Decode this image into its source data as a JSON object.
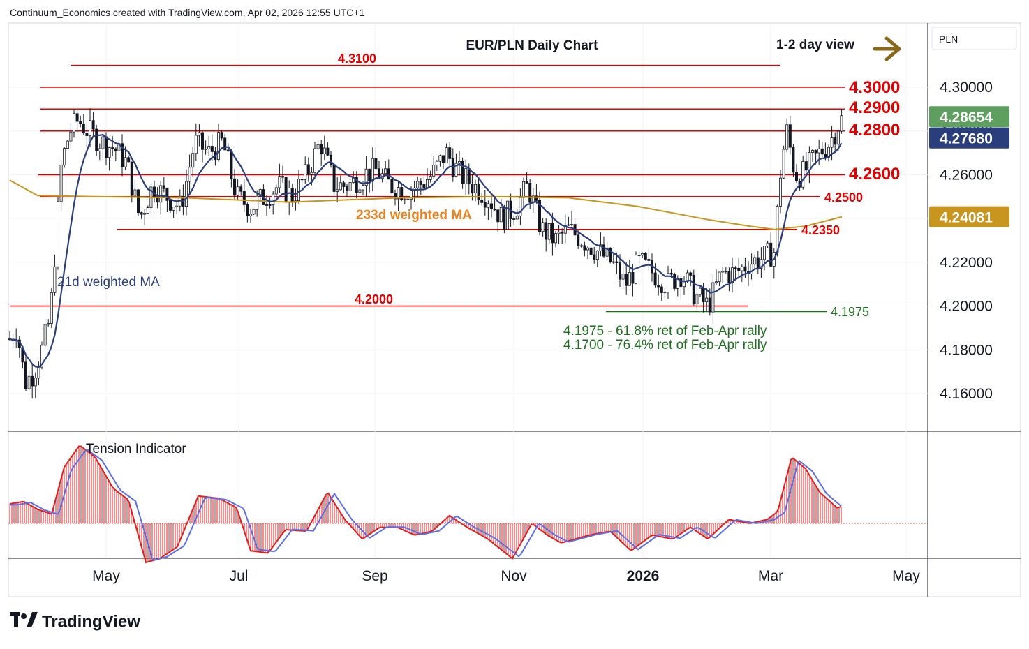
{
  "header": {
    "attribution": "Continuum_Economics created with TradingView.com, Apr 02, 2026 12:55 UTC+1"
  },
  "brand": {
    "name": "TradingView"
  },
  "currency_label": "PLN",
  "colors": {
    "level_red": "#e00000",
    "ma21": "#2a3e7c",
    "ma233": "#c8961e",
    "ma233_label": "#e8821e",
    "up_candle": "#ffffff",
    "down_candle": "#131722",
    "support_green": "#1e6e1e",
    "last_price_badge": "#5e9e5e",
    "ma21_badge": "#2a3e7c",
    "ma233_badge": "#c8961e",
    "tension_red": "#e02020",
    "tension_blue": "#5a6ee8",
    "arrow": "#8a6a1a"
  },
  "chart_data": {
    "type": "candlestick",
    "title": "EUR/PLN Daily Chart",
    "subtitle": "1-2 day view",
    "ylim": [
      4.14,
      4.32
    ],
    "y_ticks": [
      "4.16000",
      "4.18000",
      "4.20000",
      "4.22000",
      "4.24000",
      "4.26000",
      "4.28000",
      "4.30000"
    ],
    "x_ticks": [
      "May",
      "Jul",
      "Sep",
      "Nov",
      "2026",
      "Mar",
      "May"
    ],
    "levels": [
      {
        "label": "4.3100",
        "value": 4.31
      },
      {
        "label": "4.3000",
        "value": 4.3
      },
      {
        "label": "4.2900",
        "value": 4.29
      },
      {
        "label": "4.2800",
        "value": 4.28
      },
      {
        "label": "4.2600",
        "value": 4.26
      },
      {
        "label": "4.2500",
        "value": 4.25
      },
      {
        "label": "4.2350",
        "value": 4.235
      },
      {
        "label": "4.2000",
        "value": 4.2
      },
      {
        "label": "4.1975",
        "value": 4.1975
      }
    ],
    "annotations": {
      "ma21": "21d weighted MA",
      "ma233": "233d weighted MA",
      "support1": "4.1975 - 61.8% ret of Feb-Apr rally",
      "support2": "4.1700 - 76.4% ret of Feb-Apr rally",
      "tension": "Tension Indicator"
    },
    "badges": {
      "last_price": "4.28654",
      "ma21": "4.27680",
      "ma233": "4.24081"
    },
    "price_path": [
      [
        0,
        4.185
      ],
      [
        10,
        4.19
      ],
      [
        22,
        4.165
      ],
      [
        35,
        4.17
      ],
      [
        46,
        4.18
      ],
      [
        58,
        4.195
      ],
      [
        66,
        4.23
      ],
      [
        74,
        4.265
      ],
      [
        86,
        4.28
      ],
      [
        98,
        4.285
      ],
      [
        112,
        4.28
      ],
      [
        130,
        4.275
      ],
      [
        150,
        4.272
      ],
      [
        168,
        4.265
      ],
      [
        186,
        4.24
      ],
      [
        205,
        4.255
      ],
      [
        225,
        4.25
      ],
      [
        245,
        4.245
      ],
      [
        265,
        4.275
      ],
      [
        285,
        4.27
      ],
      [
        305,
        4.275
      ],
      [
        325,
        4.25
      ],
      [
        345,
        4.245
      ],
      [
        365,
        4.25
      ],
      [
        385,
        4.255
      ],
      [
        405,
        4.25
      ],
      [
        425,
        4.26
      ],
      [
        445,
        4.275
      ],
      [
        465,
        4.255
      ],
      [
        485,
        4.255
      ],
      [
        505,
        4.26
      ],
      [
        525,
        4.262
      ],
      [
        545,
        4.255
      ],
      [
        565,
        4.253
      ],
      [
        585,
        4.255
      ],
      [
        605,
        4.26
      ],
      [
        625,
        4.27
      ],
      [
        645,
        4.26
      ],
      [
        665,
        4.255
      ],
      [
        685,
        4.25
      ],
      [
        705,
        4.24
      ],
      [
        725,
        4.245
      ],
      [
        742,
        4.255
      ],
      [
        762,
        4.235
      ],
      [
        782,
        4.23
      ],
      [
        800,
        4.235
      ],
      [
        822,
        4.23
      ],
      [
        842,
        4.225
      ],
      [
        862,
        4.22
      ],
      [
        882,
        4.21
      ],
      [
        902,
        4.22
      ],
      [
        922,
        4.215
      ],
      [
        942,
        4.21
      ],
      [
        962,
        4.215
      ],
      [
        982,
        4.205
      ],
      [
        1000,
        4.2
      ],
      [
        1020,
        4.215
      ],
      [
        1040,
        4.215
      ],
      [
        1060,
        4.22
      ],
      [
        1080,
        4.222
      ],
      [
        1095,
        4.225
      ],
      [
        1105,
        4.265
      ],
      [
        1113,
        4.28
      ],
      [
        1125,
        4.26
      ],
      [
        1135,
        4.26
      ],
      [
        1147,
        4.265
      ],
      [
        1160,
        4.27
      ],
      [
        1175,
        4.275
      ],
      [
        1190,
        4.285
      ],
      [
        1205,
        4.2865
      ]
    ],
    "tension_path": [
      [
        0,
        0.25
      ],
      [
        20,
        0.28
      ],
      [
        40,
        0.18
      ],
      [
        60,
        0.12
      ],
      [
        78,
        0.72
      ],
      [
        100,
        1.0
      ],
      [
        122,
        0.85
      ],
      [
        148,
        0.45
      ],
      [
        170,
        0.3
      ],
      [
        195,
        -0.5
      ],
      [
        215,
        -0.45
      ],
      [
        240,
        -0.3
      ],
      [
        270,
        0.35
      ],
      [
        300,
        0.32
      ],
      [
        325,
        0.2
      ],
      [
        345,
        -0.35
      ],
      [
        370,
        -0.38
      ],
      [
        395,
        -0.08
      ],
      [
        425,
        -0.1
      ],
      [
        455,
        0.4
      ],
      [
        480,
        0.05
      ],
      [
        505,
        -0.2
      ],
      [
        530,
        -0.05
      ],
      [
        555,
        -0.05
      ],
      [
        580,
        -0.15
      ],
      [
        605,
        -0.1
      ],
      [
        630,
        0.1
      ],
      [
        655,
        -0.05
      ],
      [
        685,
        -0.2
      ],
      [
        720,
        -0.45
      ],
      [
        748,
        0.0
      ],
      [
        770,
        -0.15
      ],
      [
        790,
        -0.25
      ],
      [
        830,
        -0.15
      ],
      [
        860,
        -0.1
      ],
      [
        890,
        -0.35
      ],
      [
        920,
        -0.15
      ],
      [
        950,
        -0.2
      ],
      [
        975,
        -0.05
      ],
      [
        1000,
        -0.2
      ],
      [
        1030,
        0.05
      ],
      [
        1060,
        0.0
      ],
      [
        1085,
        0.05
      ],
      [
        1100,
        0.15
      ],
      [
        1120,
        0.85
      ],
      [
        1140,
        0.7
      ],
      [
        1160,
        0.4
      ],
      [
        1185,
        0.2
      ],
      [
        1205,
        0.25
      ]
    ]
  }
}
